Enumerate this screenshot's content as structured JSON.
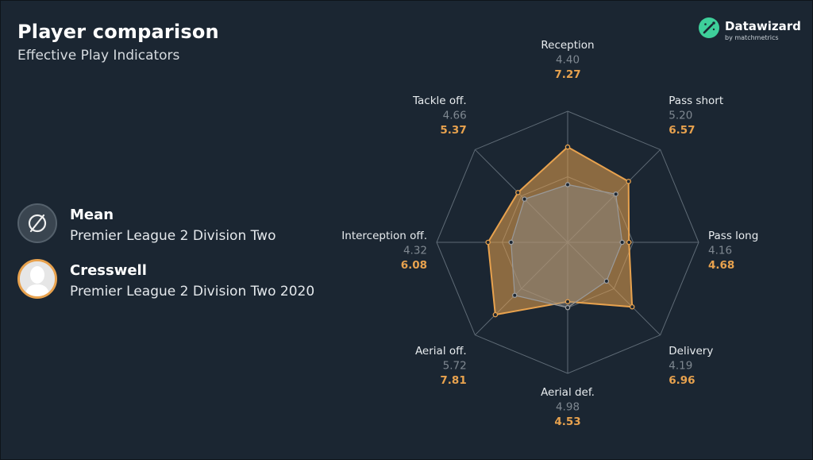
{
  "header": {
    "title": "Player comparison",
    "subtitle": "Effective Play Indicators"
  },
  "brand": {
    "name": "Datawizard",
    "tagline": "by matchmetrics"
  },
  "legend": {
    "mean": {
      "name": "Mean",
      "description": "Premier League 2 Division Two",
      "icon": "empty-set-icon"
    },
    "player": {
      "name": "Cresswell",
      "description": "Premier League 2 Division Two 2020",
      "icon": "avatar-silhouette"
    }
  },
  "colors": {
    "background": "#1b2632",
    "player": "#e8a24e",
    "mean": "#8a8a8a",
    "grid": "#5f6b76"
  },
  "chart_data": {
    "type": "radar",
    "axes": [
      "Reception",
      "Pass short",
      "Pass long",
      "Delivery",
      "Aerial def.",
      "Aerial off.",
      "Interception off.",
      "Tackle off."
    ],
    "range": [
      0,
      10
    ],
    "series": [
      {
        "name": "Mean",
        "values": [
          4.4,
          5.2,
          4.16,
          4.19,
          4.98,
          5.72,
          4.32,
          4.66
        ],
        "labels": [
          "4.40",
          "5.20",
          "4.16",
          "4.19",
          "4.98",
          "5.72",
          "4.32",
          "4.66"
        ]
      },
      {
        "name": "Cresswell",
        "values": [
          7.27,
          6.57,
          4.68,
          6.96,
          4.53,
          7.81,
          6.08,
          5.37
        ],
        "labels": [
          "7.27",
          "6.57",
          "4.68",
          "6.96",
          "4.53",
          "7.81",
          "6.08",
          "5.37"
        ]
      }
    ]
  }
}
